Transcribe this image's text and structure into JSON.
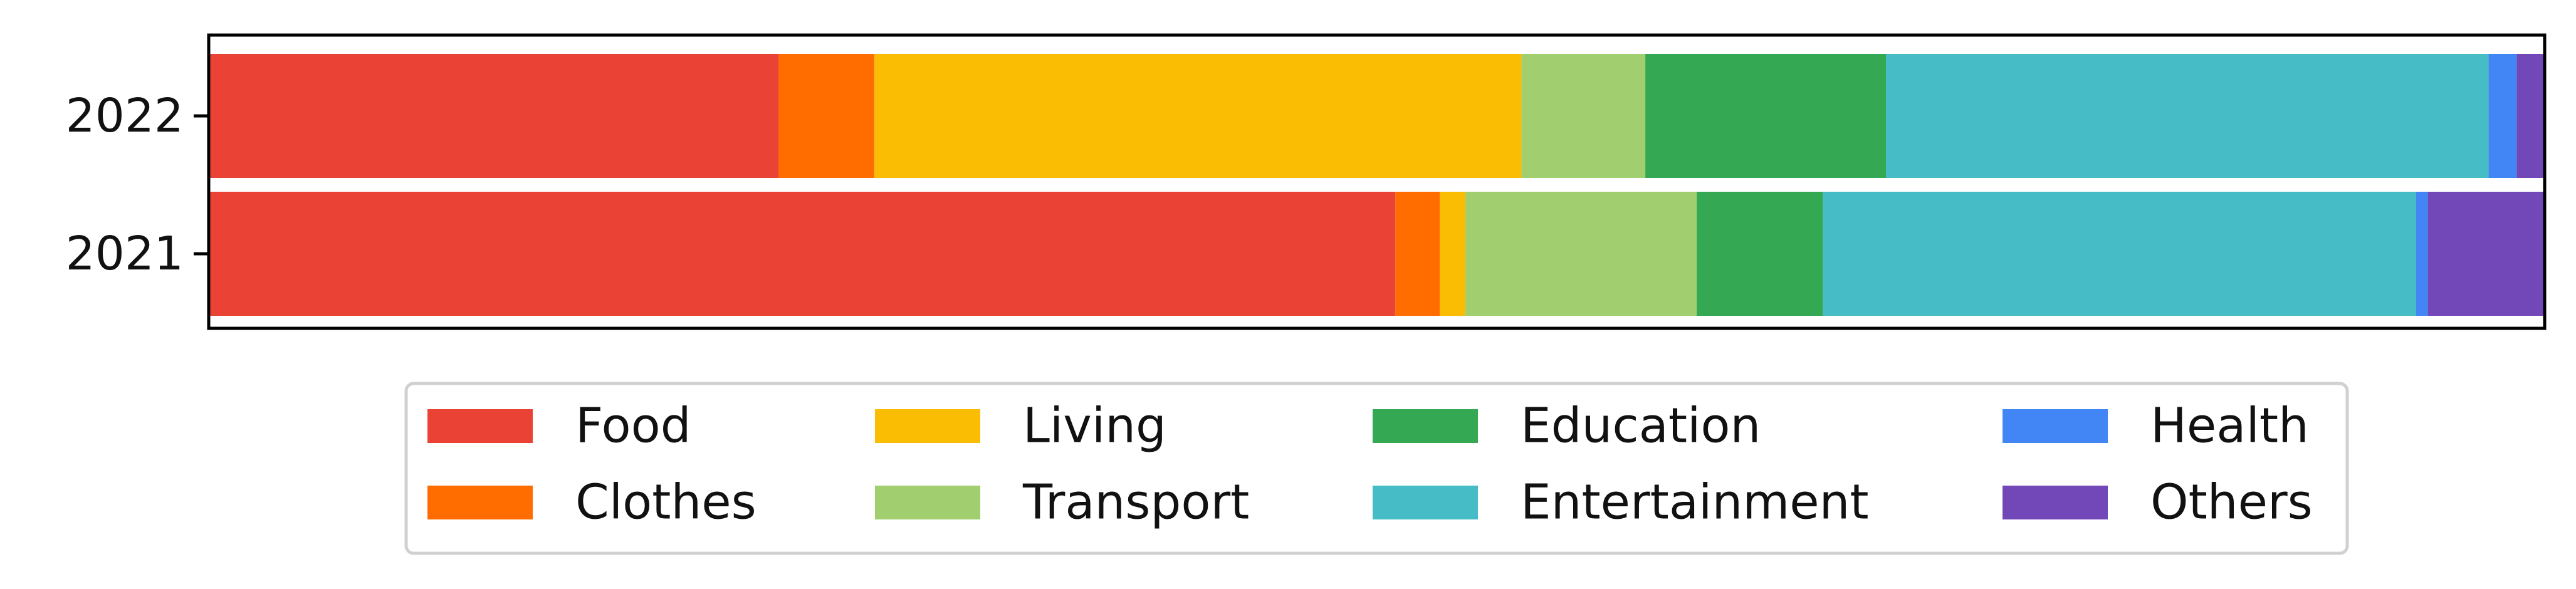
{
  "chart_data": {
    "type": "bar",
    "orientation": "horizontal",
    "stacked": true,
    "normalized": true,
    "title": "",
    "xlabel": "",
    "ylabel": "",
    "xlim": [
      0,
      1
    ],
    "categories": [
      "2022",
      "2021"
    ],
    "grid": false,
    "legend": {
      "placement": "bottom-center",
      "columns": 4
    },
    "series": [
      {
        "name": "Food",
        "color": "#EA4335",
        "values": [
          0.244,
          0.508
        ]
      },
      {
        "name": "Clothes",
        "color": "#FF6D01",
        "values": [
          0.041,
          0.019
        ]
      },
      {
        "name": "Living",
        "color": "#FBBC04",
        "values": [
          0.277,
          0.011
        ]
      },
      {
        "name": "Transport",
        "color": "#A1CE6E",
        "values": [
          0.053,
          0.099
        ]
      },
      {
        "name": "Education",
        "color": "#34A853",
        "values": [
          0.103,
          0.054
        ]
      },
      {
        "name": "Entertainment",
        "color": "#46BDC6",
        "values": [
          0.258,
          0.254
        ]
      },
      {
        "name": "Health",
        "color": "#4285F4",
        "values": [
          0.012,
          0.005
        ]
      },
      {
        "name": "Others",
        "color": "#7248B9",
        "values": [
          0.012,
          0.05
        ]
      }
    ]
  }
}
